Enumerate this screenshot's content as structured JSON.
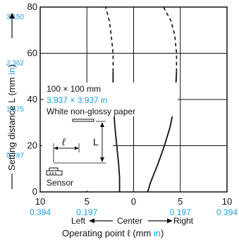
{
  "colors": {
    "text": "#111111",
    "accent": "#1ba1e2",
    "grid": "#111111",
    "curve": "#111111"
  },
  "chart_data": {
    "type": "line",
    "grid": true,
    "x_range": [
      -10,
      10
    ],
    "y_range": [
      0,
      80
    ],
    "x_ticks": [
      {
        "value": -10,
        "mm": "10",
        "in": "0.394"
      },
      {
        "value": -5,
        "mm": "5",
        "in": "0.197"
      },
      {
        "value": 0,
        "mm": "0",
        "in": ""
      },
      {
        "value": 5,
        "mm": "5",
        "in": "0.197"
      },
      {
        "value": 10,
        "mm": "10",
        "in": "0.394"
      }
    ],
    "y_ticks": [
      {
        "value": 0,
        "mm": "0",
        "in": ""
      },
      {
        "value": 20,
        "mm": "20",
        "in": "0.787"
      },
      {
        "value": 40,
        "mm": "40",
        "in": "1.575"
      },
      {
        "value": 60,
        "mm": "60",
        "in": "2.362"
      },
      {
        "value": 80,
        "mm": "80",
        "in": "3.150"
      }
    ],
    "y_axis_label": {
      "main": "Setting distance L (mm ",
      "unit": "in",
      "close": ")"
    },
    "x_axis_label": {
      "main": "Operating point ℓ (mm ",
      "unit": "in",
      "close": ")"
    },
    "direction_labels": {
      "left": "Left",
      "center": "Center",
      "right": "Right"
    },
    "annotation": {
      "size_mm": "100 × 100 mm",
      "size_in": "3.937 × 3.937 in",
      "material": "White non-glossy paper",
      "sensor": "Sensor",
      "ell": "ℓ",
      "L": "L"
    },
    "series": [
      {
        "side": "left",
        "solid": [
          [
            -1.5,
            0
          ],
          [
            -1.5,
            6
          ],
          [
            -1.6,
            12
          ],
          [
            -1.8,
            20
          ],
          [
            -2.0,
            28
          ],
          [
            -2.1,
            34
          ],
          [
            -2.2,
            40
          ],
          [
            -2.2,
            46
          ],
          [
            -2.2,
            52
          ]
        ],
        "dashed": [
          [
            -2.2,
            52
          ],
          [
            -2.2,
            60
          ],
          [
            -2.4,
            68
          ],
          [
            -2.6,
            74
          ],
          [
            -3.0,
            80
          ]
        ]
      },
      {
        "side": "right",
        "solid": [
          [
            1.5,
            0
          ],
          [
            1.8,
            4
          ],
          [
            2.6,
            12
          ],
          [
            3.3,
            20
          ],
          [
            3.9,
            28
          ],
          [
            4.3,
            36
          ],
          [
            4.5,
            44
          ],
          [
            4.6,
            52
          ]
        ],
        "dashed": [
          [
            4.6,
            52
          ],
          [
            4.6,
            60
          ],
          [
            4.4,
            68
          ],
          [
            4.0,
            74
          ],
          [
            3.2,
            80
          ]
        ]
      }
    ]
  }
}
